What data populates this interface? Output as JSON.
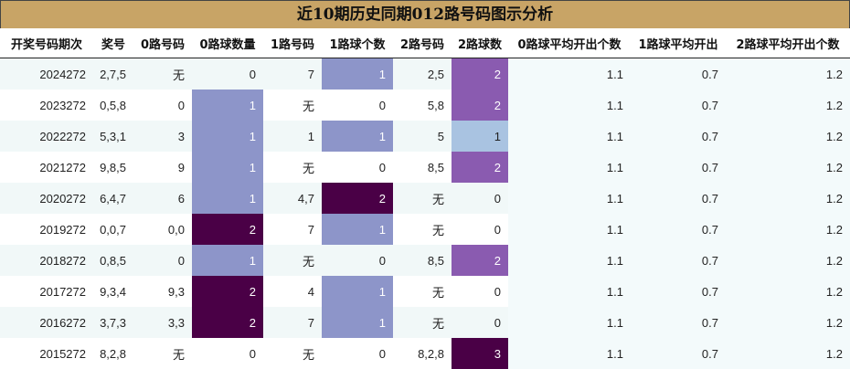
{
  "title": "近10期历史同期012路号码图示分析",
  "headers": [
    "开奖号码期次",
    "奖号",
    "0路号码",
    "0路球数量",
    "1路号码",
    "1路球个数",
    "2路号码",
    "2路球数",
    "0路球平均开出个数",
    "1路球平均开出",
    "2路球平均开出个数"
  ],
  "rows": [
    {
      "period": "2024272",
      "nums": "2,7,5",
      "r0": "无",
      "r0n": "0",
      "r1": "7",
      "r1n": "1",
      "r2": "2,5",
      "r2n": "2",
      "a0": "1.1",
      "a1": "0.7",
      "a2": "1.2"
    },
    {
      "period": "2023272",
      "nums": "0,5,8",
      "r0": "0",
      "r0n": "1",
      "r1": "无",
      "r1n": "0",
      "r2": "5,8",
      "r2n": "2",
      "a0": "1.1",
      "a1": "0.7",
      "a2": "1.2"
    },
    {
      "period": "2022272",
      "nums": "5,3,1",
      "r0": "3",
      "r0n": "1",
      "r1": "1",
      "r1n": "1",
      "r2": "5",
      "r2n": "1",
      "a0": "1.1",
      "a1": "0.7",
      "a2": "1.2"
    },
    {
      "period": "2021272",
      "nums": "9,8,5",
      "r0": "9",
      "r0n": "1",
      "r1": "无",
      "r1n": "0",
      "r2": "8,5",
      "r2n": "2",
      "a0": "1.1",
      "a1": "0.7",
      "a2": "1.2"
    },
    {
      "period": "2020272",
      "nums": "6,4,7",
      "r0": "6",
      "r0n": "1",
      "r1": "4,7",
      "r1n": "2",
      "r2": "无",
      "r2n": "0",
      "a0": "1.1",
      "a1": "0.7",
      "a2": "1.2"
    },
    {
      "period": "2019272",
      "nums": "0,0,7",
      "r0": "0,0",
      "r0n": "2",
      "r1": "7",
      "r1n": "1",
      "r2": "无",
      "r2n": "0",
      "a0": "1.1",
      "a1": "0.7",
      "a2": "1.2"
    },
    {
      "period": "2018272",
      "nums": "0,8,5",
      "r0": "0",
      "r0n": "1",
      "r1": "无",
      "r1n": "0",
      "r2": "8,5",
      "r2n": "2",
      "a0": "1.1",
      "a1": "0.7",
      "a2": "1.2"
    },
    {
      "period": "2017272",
      "nums": "9,3,4",
      "r0": "9,3",
      "r0n": "2",
      "r1": "4",
      "r1n": "1",
      "r2": "无",
      "r2n": "0",
      "a0": "1.1",
      "a1": "0.7",
      "a2": "1.2"
    },
    {
      "period": "2016272",
      "nums": "3,7,3",
      "r0": "3,3",
      "r0n": "2",
      "r1": "7",
      "r1n": "1",
      "r2": "无",
      "r2n": "0",
      "a0": "1.1",
      "a1": "0.7",
      "a2": "1.2"
    },
    {
      "period": "2015272",
      "nums": "8,2,8",
      "r0": "无",
      "r0n": "0",
      "r1": "无",
      "r1n": "0",
      "r2": "8,2,8",
      "r2n": "3",
      "a0": "1.1",
      "a1": "0.7",
      "a2": "1.2"
    }
  ],
  "colors": {
    "title_bg": "#c8a466",
    "count_one": "#8d95c9",
    "count_two_r2": "#8a5bb0",
    "count_two": "#4a0046",
    "count_one_r2": "#a9c3e1"
  }
}
